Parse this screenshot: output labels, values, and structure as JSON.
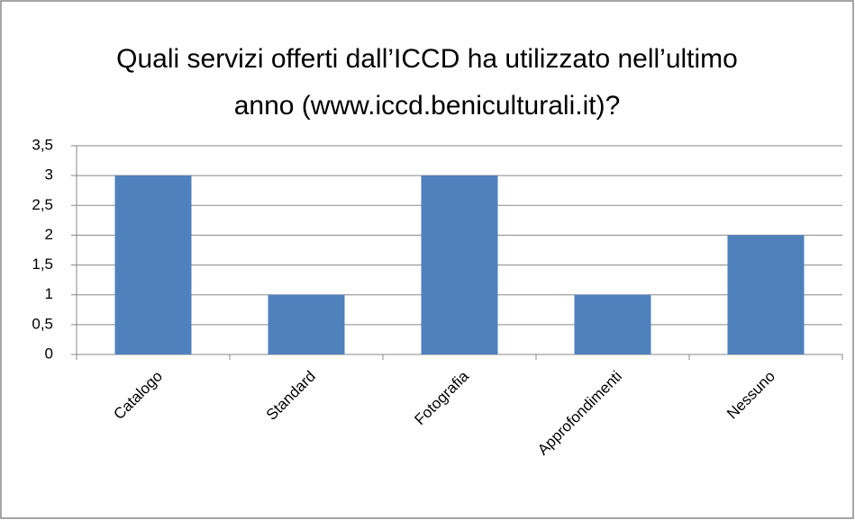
{
  "chart_data": {
    "type": "bar",
    "title": "Quali servizi offerti dall’ICCD ha utilizzato nell’ultimo anno (www.iccd.beniculturali.it)?",
    "categories": [
      "Catalogo",
      "Standard",
      "Fotografia",
      "Approfondimenti",
      "Nessuno"
    ],
    "values": [
      3,
      1,
      3,
      1,
      2
    ],
    "color": "#4f81bd",
    "ylim": [
      0,
      3.5
    ],
    "yticks": [
      0,
      {
        "value": 0.5,
        "label": "0,5"
      },
      1,
      {
        "value": 1.5,
        "label": "1,5"
      },
      2,
      {
        "value": 2.5,
        "label": "2,5"
      },
      3,
      {
        "value": 3.5,
        "label": "3,5"
      }
    ],
    "grid": true
  }
}
